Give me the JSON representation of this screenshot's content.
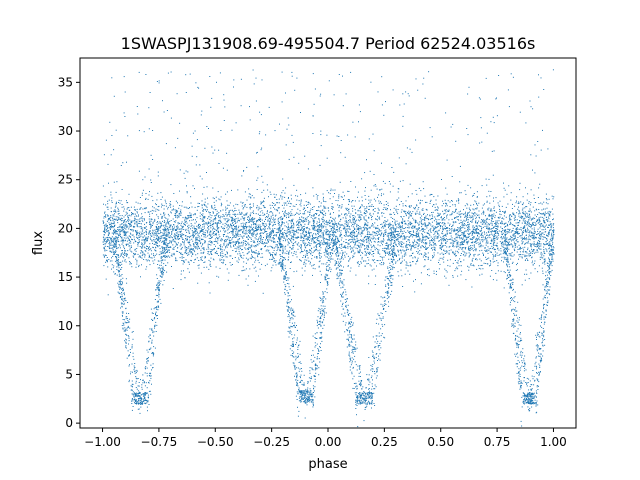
{
  "chart_data": {
    "type": "scatter",
    "title": "1SWASPJ131908.69-495504.7 Period 62524.03516s",
    "xlabel": "phase",
    "ylabel": "flux",
    "xlim": [
      -1.1,
      1.1
    ],
    "ylim": [
      -0.5,
      37.5
    ],
    "xticks": [
      -1.0,
      -0.75,
      -0.5,
      -0.25,
      0.0,
      0.25,
      0.5,
      0.75,
      1.0
    ],
    "xtick_labels": [
      "−1.00",
      "−0.75",
      "−0.50",
      "−0.25",
      "0.00",
      "0.25",
      "0.50",
      "0.75",
      "1.00"
    ],
    "yticks": [
      0,
      5,
      10,
      15,
      20,
      25,
      30,
      35
    ],
    "ytick_labels": [
      "0",
      "5",
      "10",
      "15",
      "20",
      "25",
      "30",
      "35"
    ],
    "grid": false,
    "legend": "none",
    "marker_color": "#1f77b4",
    "phase_range": [
      -1.0,
      1.0
    ],
    "baseline_flux": 19.5,
    "baseline_scatter": 1.8,
    "max_flux": 36.5,
    "eclipse_minima": [
      {
        "phase_start": -0.95,
        "phase_end": -0.72,
        "min_flux": 2.0
      },
      {
        "phase_start": -0.22,
        "phase_end": 0.02,
        "min_flux": 2.2
      },
      {
        "phase_start": 0.02,
        "phase_end": 0.3,
        "min_flux": 2.0
      },
      {
        "phase_start": 0.78,
        "phase_end": 1.0,
        "min_flux": 2.0
      }
    ]
  }
}
